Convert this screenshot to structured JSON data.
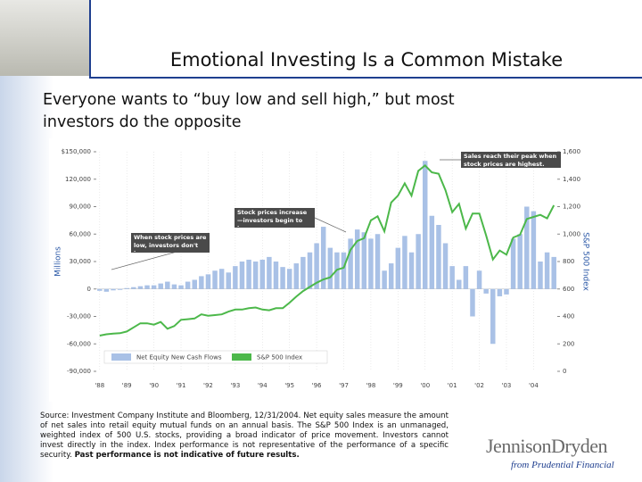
{
  "slide": {
    "title": "Emotional Investing Is a Common Mistake",
    "subtitle_lines": [
      "Everyone wants to “buy low and sell high,” but most",
      "investors do the opposite"
    ],
    "source": "Source: Investment Company Institute and Bloomberg, 12/31/2004. Net equity sales measure the amount of net sales into retail equity mutual funds on an annual basis. The S&P 500 Index is an unmanaged, weighted index of 500 U.S. stocks, providing a broad indicator of price movement. Investors cannot invest directly in the index. Index performance is not representative of the performance of a specific security.",
    "source_bold": "Past performance is not indicative of future results.",
    "logo": "JennisonDryden",
    "logo_sub": "from Prudential Financial"
  },
  "chart_data": {
    "type": "bar_line",
    "ylabel": "Millions",
    "y2label": "S&P 500 Index",
    "categories": [
      "'88",
      null,
      null,
      null,
      "'89",
      null,
      null,
      null,
      "'90",
      null,
      null,
      null,
      "'91",
      null,
      null,
      null,
      "'92",
      null,
      null,
      null,
      "'93",
      null,
      null,
      null,
      "'94",
      null,
      null,
      null,
      "'95",
      null,
      null,
      null,
      "'96",
      null,
      null,
      null,
      "'97",
      null,
      null,
      null,
      "'98",
      null,
      null,
      null,
      "'99",
      null,
      null,
      null,
      "'00",
      null,
      null,
      null,
      "'01",
      null,
      null,
      null,
      "'02",
      null,
      null,
      null,
      "'03",
      null,
      null,
      null,
      "'04",
      null,
      null,
      null
    ],
    "series": [
      {
        "name": "Net Equity New Cash Flows",
        "color": "#a9c1e6",
        "type": "bar",
        "values": [
          -2000,
          -3000,
          -1500,
          -1000,
          1000,
          2000,
          3000,
          4000,
          4000,
          6000,
          8000,
          5000,
          4000,
          8000,
          10000,
          14000,
          16000,
          20000,
          22000,
          18000,
          25000,
          30000,
          32000,
          30000,
          32000,
          35000,
          30000,
          24000,
          22000,
          28000,
          35000,
          40000,
          50000,
          68000,
          45000,
          40000,
          40000,
          55000,
          65000,
          62000,
          55000,
          60000,
          20000,
          28000,
          45000,
          58000,
          40000,
          60000,
          140000,
          80000,
          70000,
          50000,
          25000,
          10000,
          25000,
          -30000,
          20000,
          -5000,
          -60000,
          -8000,
          -6000,
          55000,
          60000,
          90000,
          85000,
          30000,
          40000,
          35000
        ]
      },
      {
        "name": "S&P 500 Index",
        "color": "#4cb84a",
        "type": "line",
        "axis": "y2",
        "values": [
          260,
          270,
          275,
          278,
          290,
          320,
          350,
          350,
          340,
          360,
          310,
          330,
          375,
          380,
          385,
          415,
          405,
          410,
          415,
          435,
          450,
          450,
          460,
          465,
          450,
          445,
          460,
          460,
          500,
          545,
          585,
          615,
          645,
          670,
          685,
          740,
          755,
          885,
          950,
          970,
          1100,
          1130,
          1020,
          1230,
          1280,
          1370,
          1280,
          1460,
          1500,
          1450,
          1440,
          1320,
          1160,
          1220,
          1040,
          1150,
          1150,
          990,
          815,
          880,
          850,
          975,
          995,
          1110,
          1125,
          1140,
          1115,
          1210
        ]
      }
    ],
    "ylim": [
      -90000,
      150000
    ],
    "yticks": [
      {
        "value": 150000,
        "label": "$150,000"
      },
      {
        "value": 120000,
        "label": "120,000"
      },
      {
        "value": 90000,
        "label": "90,000"
      },
      {
        "value": 60000,
        "label": "60,000"
      },
      {
        "value": 30000,
        "label": "30,000"
      },
      0,
      {
        "value": -30000,
        "label": "-30,000"
      },
      {
        "value": -60000,
        "label": "-60,000"
      },
      {
        "value": -90000,
        "label": "-90,000"
      }
    ],
    "y2lim": [
      0,
      1600
    ],
    "y2ticks": [
      {
        "value": 1600,
        "label": "1,600"
      },
      {
        "value": 1400,
        "label": "1,400"
      },
      {
        "value": 1200,
        "label": "1,200"
      },
      {
        "value": 1000,
        "label": "1,000"
      },
      800,
      600,
      400,
      200,
      0
    ],
    "annotations": [
      "Sales reach their peak when stock prices are highest.",
      "Stock prices increase—investors begin to buy.",
      "When stock prices are low, investors don't buy."
    ],
    "legend": "bottom"
  }
}
